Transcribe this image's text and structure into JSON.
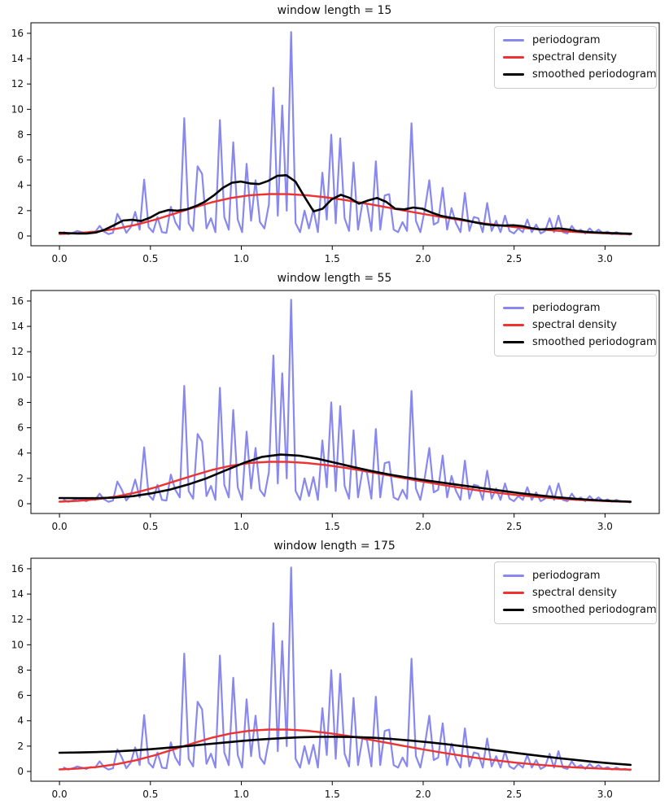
{
  "figure": {
    "background": "#ffffff"
  },
  "legend": {
    "entries": [
      {
        "label": "periodogram",
        "color": "#8888ee",
        "thickness": 3
      },
      {
        "label": "spectral density",
        "color": "#ed3232",
        "thickness": 3
      },
      {
        "label": "smoothed periodogram",
        "color": "#000000",
        "thickness": 2.6
      }
    ]
  },
  "chart_data": {
    "type": "line",
    "layout": {
      "grid": false,
      "legend_position": "upper right",
      "xlim": [
        -0.157,
        3.298
      ],
      "ylim": [
        -0.77,
        16.83
      ],
      "xtick_values": [
        0.0,
        0.5,
        1.0,
        1.5,
        2.0,
        2.5,
        3.0
      ],
      "xtick_labels": [
        "0.0",
        "0.5",
        "1.0",
        "1.5",
        "2.0",
        "2.5",
        "3.0"
      ],
      "ytick_values": [
        0,
        2,
        4,
        6,
        8,
        10,
        12,
        14,
        16
      ],
      "ytick_labels": [
        "0",
        "2",
        "4",
        "6",
        "8",
        "10",
        "12",
        "14",
        "16"
      ]
    },
    "shared_series": {
      "periodogram": {
        "name": "periodogram",
        "color": "#8888ee",
        "width": 2.2,
        "x0": 0.0245,
        "dx": 0.0245,
        "y": [
          0.3,
          0.15,
          0.25,
          0.4,
          0.3,
          0.2,
          0.35,
          0.3,
          0.8,
          0.35,
          0.15,
          0.25,
          1.75,
          1.1,
          0.25,
          0.7,
          1.9,
          0.5,
          4.45,
          0.7,
          0.3,
          1.5,
          0.3,
          0.25,
          2.3,
          1.1,
          0.5,
          9.3,
          1.0,
          0.4,
          5.5,
          4.9,
          0.6,
          1.4,
          0.3,
          9.15,
          1.5,
          0.5,
          7.4,
          1.3,
          0.3,
          5.7,
          1.2,
          4.4,
          1.1,
          0.6,
          2.5,
          11.7,
          1.6,
          10.3,
          2.0,
          16.1,
          1.0,
          0.3,
          2.0,
          0.6,
          2.1,
          0.3,
          5.0,
          1.3,
          8.0,
          1.0,
          7.7,
          1.4,
          0.4,
          5.8,
          0.5,
          2.6,
          2.5,
          0.4,
          5.9,
          0.5,
          3.2,
          3.3,
          0.5,
          0.3,
          1.1,
          0.4,
          8.9,
          1.2,
          0.3,
          2.1,
          4.4,
          0.9,
          1.1,
          3.8,
          0.5,
          2.2,
          1.0,
          0.3,
          3.4,
          0.4,
          1.5,
          1.4,
          0.3,
          2.6,
          0.4,
          1.2,
          0.3,
          1.6,
          0.4,
          0.2,
          0.6,
          0.3,
          1.3,
          0.3,
          0.9,
          0.2,
          0.4,
          1.4,
          0.3,
          1.6,
          0.3,
          0.2,
          0.8,
          0.3,
          0.5,
          0.2,
          0.6,
          0.25,
          0.5,
          0.2,
          0.35,
          0.15,
          0.3,
          0.15,
          0.2,
          0.1
        ]
      },
      "spectral_density": {
        "name": "spectral density",
        "color": "#ed3232",
        "width": 2.4,
        "x0": 0.0,
        "dx": 0.1047,
        "y": [
          0.16,
          0.23,
          0.36,
          0.57,
          0.88,
          1.28,
          1.75,
          2.22,
          2.66,
          3.0,
          3.22,
          3.31,
          3.3,
          3.21,
          3.05,
          2.84,
          2.59,
          2.32,
          2.04,
          1.77,
          1.51,
          1.27,
          1.05,
          0.86,
          0.69,
          0.55,
          0.43,
          0.33,
          0.25,
          0.19,
          0.15
        ]
      }
    },
    "charts": [
      {
        "title": "window length = 15",
        "smoothed_periodogram": {
          "name": "smoothed periodogram",
          "color": "#000000",
          "width": 2.6,
          "x0": 0.0,
          "dx": 0.0499,
          "y": [
            0.25,
            0.22,
            0.2,
            0.2,
            0.28,
            0.5,
            0.85,
            1.22,
            1.28,
            1.18,
            1.45,
            1.85,
            2.05,
            2.0,
            2.1,
            2.35,
            2.7,
            3.2,
            3.8,
            4.2,
            4.3,
            4.15,
            4.1,
            4.35,
            4.75,
            4.8,
            4.3,
            3.1,
            1.95,
            2.15,
            2.9,
            3.25,
            3.0,
            2.55,
            2.8,
            3.0,
            2.7,
            2.15,
            2.1,
            2.25,
            2.15,
            1.85,
            1.6,
            1.45,
            1.35,
            1.2,
            1.05,
            0.92,
            0.85,
            0.82,
            0.85,
            0.78,
            0.62,
            0.52,
            0.55,
            0.6,
            0.52,
            0.4,
            0.33,
            0.28,
            0.25,
            0.22,
            0.2,
            0.18
          ]
        }
      },
      {
        "title": "window length = 55",
        "smoothed_periodogram": {
          "name": "smoothed periodogram",
          "color": "#000000",
          "width": 2.6,
          "x0": 0.0,
          "dx": 0.1013,
          "y": [
            0.45,
            0.44,
            0.44,
            0.48,
            0.6,
            0.82,
            1.12,
            1.52,
            2.02,
            2.62,
            3.22,
            3.7,
            3.88,
            3.8,
            3.55,
            3.22,
            2.88,
            2.56,
            2.28,
            2.04,
            1.82,
            1.62,
            1.42,
            1.22,
            1.02,
            0.83,
            0.66,
            0.51,
            0.39,
            0.29,
            0.21,
            0.16
          ]
        }
      },
      {
        "title": "window length = 175",
        "smoothed_periodogram": {
          "name": "smoothed periodogram",
          "color": "#000000",
          "width": 2.6,
          "x0": 0.0,
          "dx": 0.1013,
          "y": [
            1.48,
            1.5,
            1.53,
            1.58,
            1.66,
            1.76,
            1.88,
            2.01,
            2.15,
            2.29,
            2.42,
            2.53,
            2.62,
            2.69,
            2.73,
            2.74,
            2.72,
            2.66,
            2.57,
            2.45,
            2.31,
            2.15,
            1.97,
            1.79,
            1.6,
            1.42,
            1.24,
            1.07,
            0.91,
            0.76,
            0.63,
            0.52
          ]
        }
      }
    ]
  }
}
